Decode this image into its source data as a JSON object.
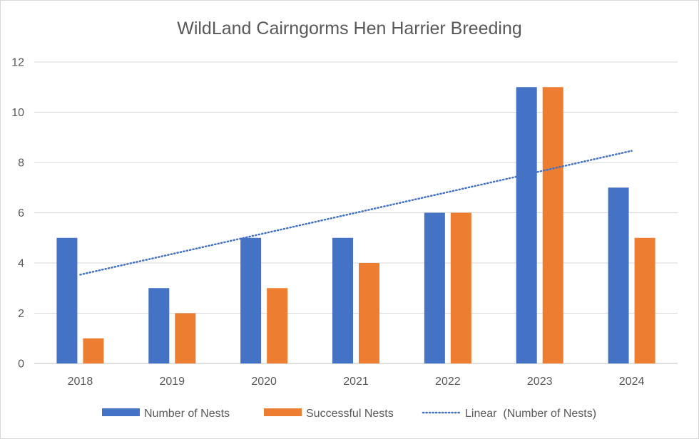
{
  "chart_data": {
    "type": "bar",
    "title": "WildLand Cairngorms Hen Harrier Breeding",
    "categories": [
      "2018",
      "2019",
      "2020",
      "2021",
      "2022",
      "2023",
      "2024"
    ],
    "series": [
      {
        "name": "Number of Nests",
        "values": [
          5,
          3,
          5,
          5,
          6,
          11,
          7
        ],
        "color": "#4472c4"
      },
      {
        "name": "Successful Nests",
        "values": [
          1,
          2,
          3,
          4,
          6,
          11,
          5
        ],
        "color": "#ed7d31"
      }
    ],
    "trendline": {
      "name": "Linear  (Number of Nests)",
      "of_series": "Number of Nests",
      "type": "linear",
      "style": "dotted",
      "color": "#4472c4"
    },
    "ylim": [
      0,
      12
    ],
    "yticks": [
      "0",
      "2",
      "4",
      "6",
      "8",
      "10",
      "12"
    ],
    "grid": true,
    "legend_position": "bottom"
  }
}
